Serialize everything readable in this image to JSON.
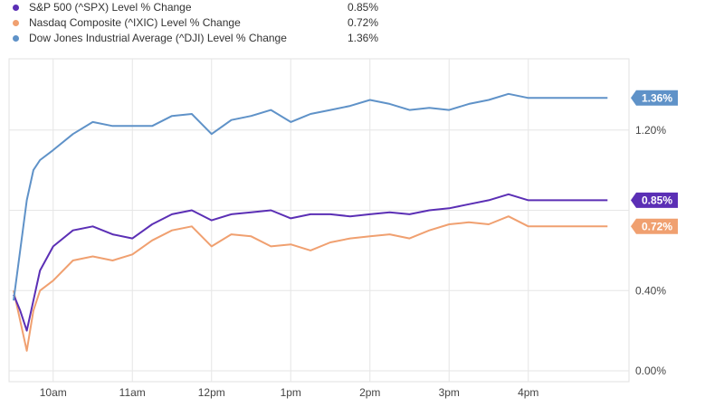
{
  "legend": [
    {
      "name": "S&P 500 (^SPX) Level % Change",
      "value": "0.85%",
      "color": "#5b2fb5"
    },
    {
      "name": "Nasdaq Composite (^IXIC) Level % Change",
      "value": "0.72%",
      "color": "#f0a070"
    },
    {
      "name": "Dow Jones Industrial Average (^DJI) Level % Change",
      "value": "1.36%",
      "color": "#5f92c8"
    }
  ],
  "chart_data": {
    "type": "line",
    "title": "",
    "xlabel": "",
    "ylabel": "",
    "x_ticks": [
      "10am",
      "11am",
      "12pm",
      "1pm",
      "2pm",
      "3pm",
      "4pm"
    ],
    "y_ticks": [
      "0.00%",
      "0.40%",
      "1.20%"
    ],
    "ylim": [
      0.0,
      1.6
    ],
    "grid": true,
    "legend_position": "top-left",
    "x": [
      "09:30",
      "09:35",
      "09:40",
      "09:45",
      "09:50",
      "10:00",
      "10:15",
      "10:30",
      "10:45",
      "11:00",
      "11:15",
      "11:30",
      "11:45",
      "12:00",
      "12:15",
      "12:30",
      "12:45",
      "13:00",
      "13:15",
      "13:30",
      "13:45",
      "14:00",
      "14:15",
      "14:30",
      "14:45",
      "15:00",
      "15:15",
      "15:30",
      "15:45",
      "16:00",
      "16:15",
      "16:30",
      "16:45",
      "17:00"
    ],
    "series": [
      {
        "name": "S&P 500 (^SPX) Level % Change",
        "color": "#5b2fb5",
        "end_label": "0.85%",
        "values": [
          0.38,
          0.3,
          0.2,
          0.35,
          0.5,
          0.62,
          0.7,
          0.72,
          0.68,
          0.66,
          0.73,
          0.78,
          0.8,
          0.75,
          0.78,
          0.79,
          0.8,
          0.76,
          0.78,
          0.78,
          0.77,
          0.78,
          0.79,
          0.78,
          0.8,
          0.81,
          0.83,
          0.85,
          0.88,
          0.85,
          0.85,
          0.85,
          0.85,
          0.85
        ]
      },
      {
        "name": "Nasdaq Composite (^IXIC) Level % Change",
        "color": "#f0a070",
        "end_label": "0.72%",
        "values": [
          0.4,
          0.25,
          0.1,
          0.3,
          0.4,
          0.45,
          0.55,
          0.57,
          0.55,
          0.58,
          0.65,
          0.7,
          0.72,
          0.62,
          0.68,
          0.67,
          0.62,
          0.63,
          0.6,
          0.64,
          0.66,
          0.67,
          0.68,
          0.66,
          0.7,
          0.73,
          0.74,
          0.73,
          0.77,
          0.72,
          0.72,
          0.72,
          0.72,
          0.72
        ]
      },
      {
        "name": "Dow Jones Industrial Average (^DJI) Level % Change",
        "color": "#5f92c8",
        "end_label": "1.36%",
        "values": [
          0.35,
          0.6,
          0.85,
          1.0,
          1.05,
          1.1,
          1.18,
          1.24,
          1.22,
          1.22,
          1.22,
          1.27,
          1.28,
          1.18,
          1.25,
          1.27,
          1.3,
          1.24,
          1.28,
          1.3,
          1.32,
          1.35,
          1.33,
          1.3,
          1.31,
          1.3,
          1.33,
          1.35,
          1.38,
          1.36,
          1.36,
          1.36,
          1.36,
          1.36
        ]
      }
    ]
  }
}
